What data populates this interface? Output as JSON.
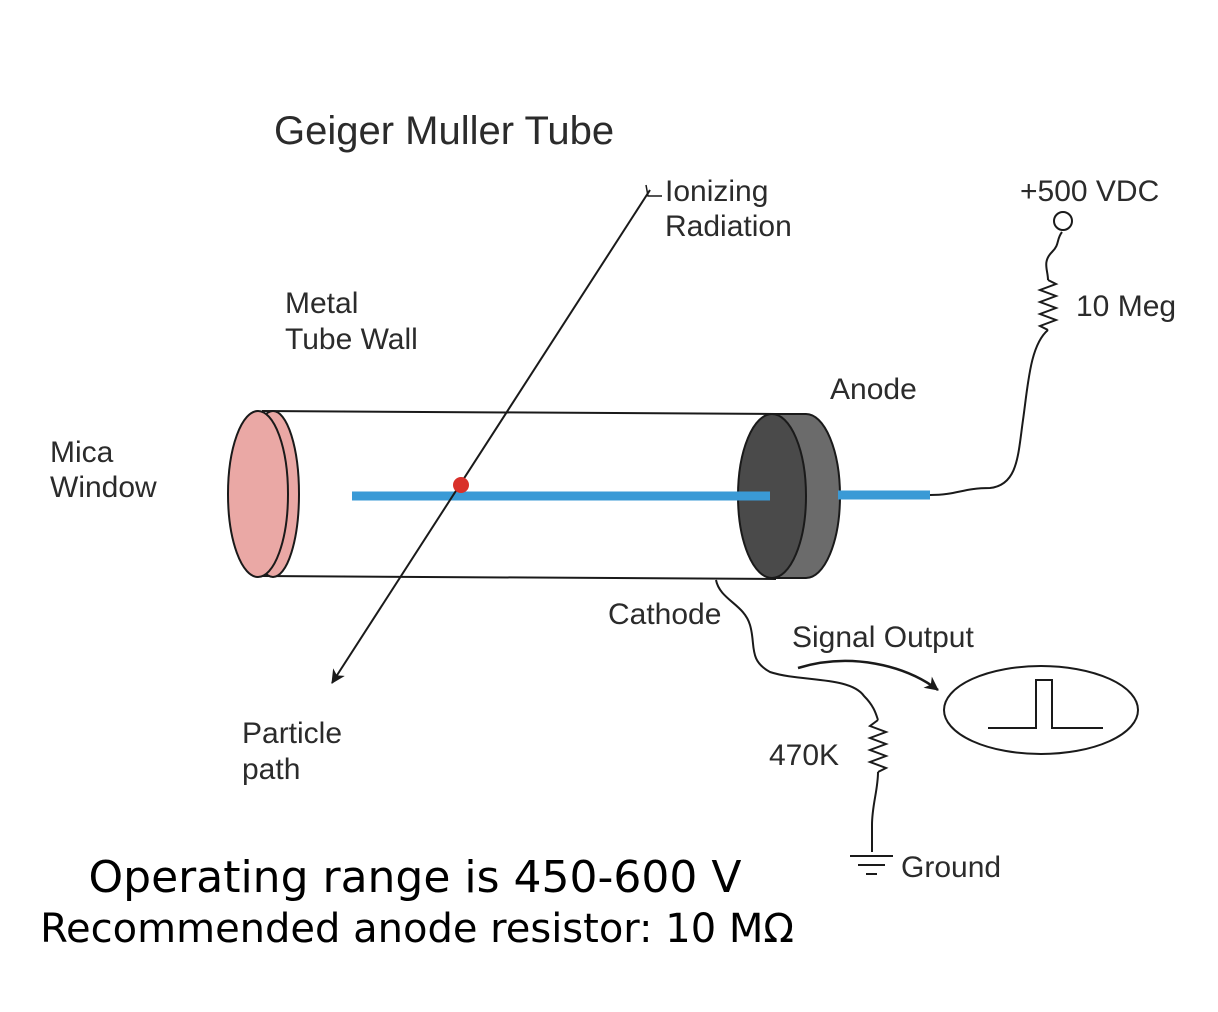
{
  "diagram": {
    "title": "Geiger Muller Tube",
    "labels": {
      "ionizing_1": "Ionizing",
      "ionizing_2": "Radiation",
      "supply_voltage": "+500 VDC",
      "anode_resistor": "10 Meg",
      "wall_1": "Metal",
      "wall_2": "Tube Wall",
      "anode": "Anode",
      "window_1": "Mica",
      "window_2": "Window",
      "cathode": "Cathode",
      "signal_output": "Signal Output",
      "particle_1": "Particle",
      "particle_2": "path",
      "load_resistor": "470K",
      "ground": "Ground"
    },
    "colors": {
      "mica_window": "#eaa8a5",
      "anode_cap_front": "#4a4a4a",
      "anode_cap_side": "#6b6b6b",
      "anode_wire": "#3a9ad6",
      "ionization_event": "#d9302a",
      "line": "#1a1a1a"
    }
  },
  "footer": {
    "operating_range": "Operating range is 450-600 V",
    "recommended_resistor": "Recommended anode resistor: 10 MΩ"
  }
}
